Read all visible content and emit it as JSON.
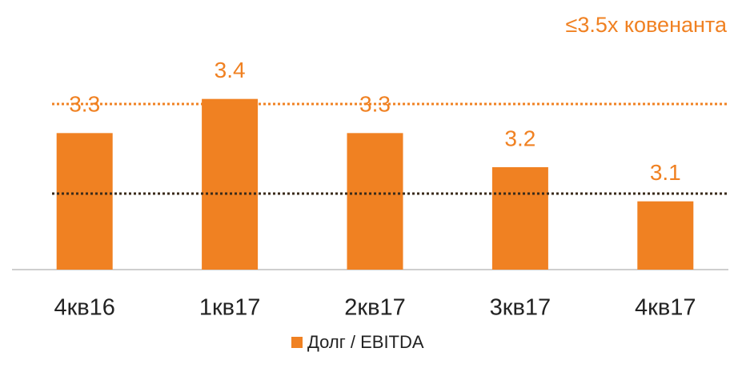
{
  "chart_data": {
    "type": "bar",
    "annotation": "≤3.5x ковенанта",
    "categories": [
      "4кв16",
      "1кв17",
      "2кв17",
      "3кв17",
      "4кв17"
    ],
    "series": [
      {
        "name": "Долг / EBITDA",
        "color": "#f08122",
        "values": [
          3.3,
          3.4,
          3.3,
          3.2,
          3.1
        ]
      }
    ],
    "ylim": [
      2.9,
      3.5
    ]
  }
}
